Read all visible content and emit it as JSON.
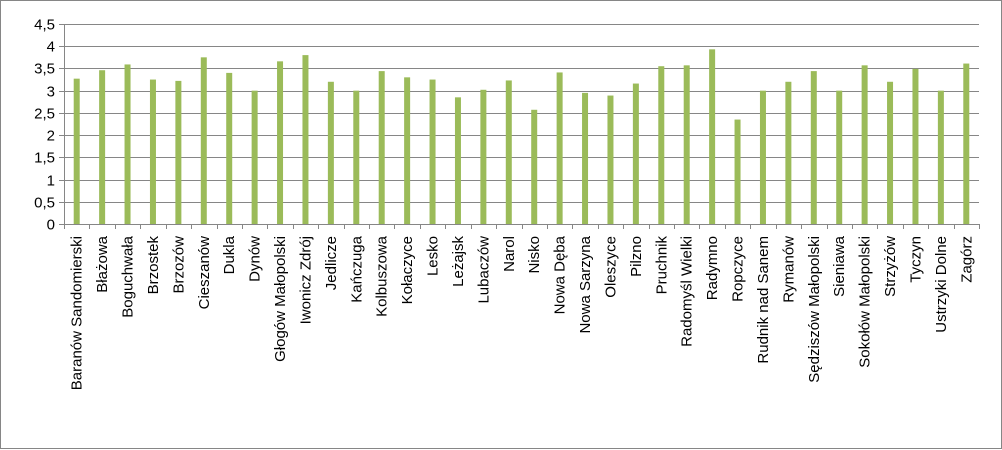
{
  "chart_data": {
    "type": "bar",
    "title": "",
    "xlabel": "",
    "ylabel": "",
    "ylim": [
      0,
      4.5
    ],
    "yticks": [
      0,
      0.5,
      1,
      1.5,
      2,
      2.5,
      3,
      3.5,
      4,
      4.5
    ],
    "ytick_labels": [
      "0",
      "0,5",
      "1",
      "1,5",
      "2",
      "2,5",
      "3",
      "3,5",
      "4",
      "4,5"
    ],
    "grid": "horizontal",
    "legend": "none",
    "bar_color": "#9BBB59",
    "categories": [
      "Baranów Sandomierski",
      "Błażowa",
      "Boguchwała",
      "Brzostek",
      "Brzozów",
      "Cieszanów",
      "Dukla",
      "Dynów",
      "Głogów Małopolski",
      "Iwonicz Zdrój",
      "Jedlicze",
      "Kańczuga",
      "Kolbuszowa",
      "Kołaczyce",
      "Lesko",
      "Leżajsk",
      "Lubaczów",
      "Narol",
      "Nisko",
      "Nowa Dęba",
      "Nowa Sarzyna",
      "Oleszyce",
      "Pilzno",
      "Pruchnik",
      "Radomyśl Wielki",
      "Radymno",
      "Ropczyce",
      "Rudnik nad Sanem",
      "Rymanów",
      "Sędziszów Małopolski",
      "Sieniawa",
      "Sokołów Małopolski",
      "Strzyżów",
      "Tyczyn",
      "Ustrzyki Dolne",
      "Zagórz"
    ],
    "values": [
      3.27,
      3.46,
      3.59,
      3.25,
      3.22,
      3.75,
      3.4,
      3.0,
      3.66,
      3.8,
      3.2,
      3.0,
      3.44,
      3.3,
      3.25,
      2.85,
      3.02,
      3.23,
      2.57,
      3.41,
      2.95,
      2.89,
      3.16,
      3.55,
      3.57,
      3.93,
      2.35,
      3.0,
      3.2,
      3.44,
      3.0,
      3.57,
      3.2,
      3.49,
      3.0,
      3.61
    ]
  }
}
